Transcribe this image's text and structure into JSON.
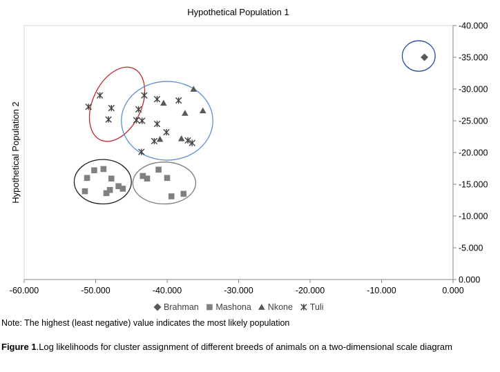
{
  "chart_data": {
    "type": "scatter",
    "title": "Hypothetical Population 1",
    "xlabel": "",
    "ylabel": "Hypothetical Population 2",
    "xlim": [
      -60,
      0
    ],
    "ylim": [
      0,
      -40
    ],
    "x_ticks": [
      "-60.000",
      "-50.000",
      "-40.000",
      "-30.000",
      "-20.000",
      "-10.000",
      "0.000"
    ],
    "y_ticks": [
      "-40.000",
      "-35.000",
      "-30.000",
      "-25.000",
      "-20.000",
      "-15.000",
      "-10.000",
      "-5.000",
      "0.000"
    ],
    "y_axis_position": "right",
    "y_axis_reversed": true,
    "grid": false,
    "legend_position": "bottom",
    "series": [
      {
        "name": "Brahman",
        "marker": "diamond",
        "color": "#595959",
        "points": [
          [
            -4.0,
            -35.0
          ]
        ]
      },
      {
        "name": "Mashona",
        "marker": "square",
        "color": "#808080",
        "points": [
          [
            -51.5,
            -13.9
          ],
          [
            -51.2,
            -16.0
          ],
          [
            -50.2,
            -17.2
          ],
          [
            -48.9,
            -17.4
          ],
          [
            -48.5,
            -13.6
          ],
          [
            -48.0,
            -14.1
          ],
          [
            -47.8,
            -15.9
          ],
          [
            -46.8,
            -14.7
          ],
          [
            -46.2,
            -14.3
          ],
          [
            -43.4,
            -16.3
          ],
          [
            -42.8,
            -15.9
          ],
          [
            -41.2,
            -17.3
          ],
          [
            -40.0,
            -16.0
          ],
          [
            -39.4,
            -13.1
          ],
          [
            -37.7,
            -13.5
          ]
        ]
      },
      {
        "name": "Nkone",
        "marker": "triangle",
        "color": "#595959",
        "points": [
          [
            -36.3,
            -30.0
          ],
          [
            -35.0,
            -26.6
          ],
          [
            -37.5,
            -26.2
          ],
          [
            -40.5,
            -27.8
          ],
          [
            -41.0,
            -22.1
          ],
          [
            -38.0,
            -22.2
          ]
        ]
      },
      {
        "name": "Tuli",
        "marker": "asterisk",
        "color": "#404040",
        "points": [
          [
            -51.0,
            -27.2
          ],
          [
            -49.4,
            -29.0
          ],
          [
            -48.2,
            -25.2
          ],
          [
            -47.8,
            -27.0
          ],
          [
            -44.0,
            -26.8
          ],
          [
            -43.5,
            -25.0
          ],
          [
            -44.3,
            -25.1
          ],
          [
            -43.2,
            -29.0
          ],
          [
            -41.4,
            -28.4
          ],
          [
            -41.4,
            -24.5
          ],
          [
            -40.1,
            -23.2
          ],
          [
            -38.4,
            -28.2
          ],
          [
            -41.8,
            -21.8
          ],
          [
            -43.6,
            -20.1
          ],
          [
            -37.1,
            -21.9
          ],
          [
            -36.5,
            -21.5
          ]
        ]
      }
    ],
    "annotations": [
      {
        "kind": "ellipse",
        "cx": -4.8,
        "cy": -35.2,
        "rx": 2.3,
        "ry": 2.4,
        "color": "#1F4E9A"
      },
      {
        "kind": "ellipse",
        "cx": -47.0,
        "cy": -27.6,
        "rx": 3.4,
        "ry": 6.2,
        "rotate": 25,
        "color": "#C0282D"
      },
      {
        "kind": "ellipse",
        "cx": -40.0,
        "cy": -25.0,
        "rx": 6.4,
        "ry": 6.2,
        "color": "#5B8FD0"
      },
      {
        "kind": "ellipse",
        "cx": -49.0,
        "cy": -15.4,
        "rx": 4.0,
        "ry": 3.5,
        "color": "#1a1a1a"
      },
      {
        "kind": "ellipse",
        "cx": -40.4,
        "cy": -15.2,
        "rx": 4.4,
        "ry": 3.3,
        "color": "#7a7a7a"
      }
    ]
  },
  "note": "Note: The highest (least negative) value indicates the most likely population",
  "caption": {
    "label": "Figure 1",
    "text": ".Log likelihoods for cluster assignment of different breeds of animals on a two-dimensional scale diagram"
  }
}
